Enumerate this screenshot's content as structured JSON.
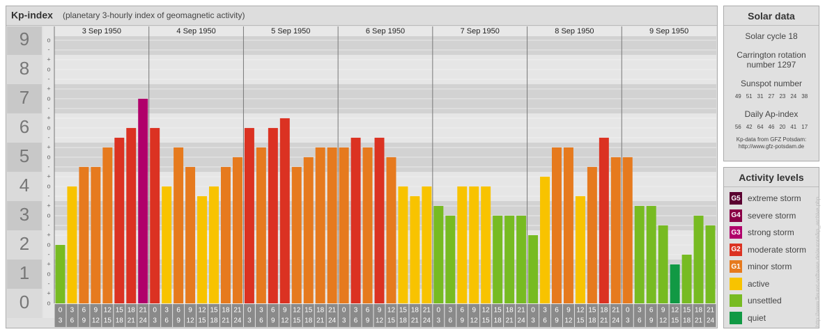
{
  "chart_data": {
    "type": "bar",
    "title": "Kp-index",
    "subtitle": "(planetary 3-hourly index of geomagnetic activity)",
    "days": [
      "3 Sep 1950",
      "4 Sep 1950",
      "5 Sep 1950",
      "6 Sep 1950",
      "7 Sep 1950",
      "8 Sep 1950",
      "9 Sep 1950"
    ],
    "hours": [
      [
        "0",
        "3"
      ],
      [
        "3",
        "6"
      ],
      [
        "6",
        "9"
      ],
      [
        "9",
        "12"
      ],
      [
        "12",
        "15"
      ],
      [
        "15",
        "18"
      ],
      [
        "18",
        "21"
      ],
      [
        "21",
        "24"
      ]
    ],
    "values": [
      2,
      4,
      4.667,
      4.667,
      5.333,
      5.667,
      6,
      7,
      6,
      4,
      5.333,
      4.667,
      3.667,
      4,
      4.667,
      5,
      6,
      5.333,
      6,
      6.333,
      4.667,
      5,
      5.333,
      5.333,
      5.333,
      5.667,
      5.333,
      5.667,
      5,
      4,
      3.667,
      4,
      3.333,
      3,
      4,
      4,
      4,
      3,
      3,
      3,
      2.333,
      4.333,
      5.333,
      5.333,
      3.667,
      4.667,
      5.667,
      5,
      5,
      3.333,
      3.333,
      2.667,
      1.333,
      1.667,
      3,
      2.667
    ],
    "colors": [
      "#77bb22",
      "#f8c300",
      "#e67a1e",
      "#e67a1e",
      "#e67a1e",
      "#db3222",
      "#db3222",
      "#b0006a",
      "#db3222",
      "#f8c300",
      "#e67a1e",
      "#e67a1e",
      "#f8c300",
      "#f8c300",
      "#e67a1e",
      "#e67a1e",
      "#db3222",
      "#e67a1e",
      "#db3222",
      "#db3222",
      "#e67a1e",
      "#e67a1e",
      "#e67a1e",
      "#e67a1e",
      "#e67a1e",
      "#db3222",
      "#e67a1e",
      "#db3222",
      "#e67a1e",
      "#f8c300",
      "#f8c300",
      "#f8c300",
      "#77bb22",
      "#77bb22",
      "#f8c300",
      "#f8c300",
      "#f8c300",
      "#77bb22",
      "#77bb22",
      "#77bb22",
      "#77bb22",
      "#f8c300",
      "#e67a1e",
      "#e67a1e",
      "#f8c300",
      "#e67a1e",
      "#db3222",
      "#e67a1e",
      "#e67a1e",
      "#77bb22",
      "#77bb22",
      "#77bb22",
      "#119944",
      "#77bb22",
      "#77bb22",
      "#77bb22"
    ],
    "ylim": [
      0,
      9.14
    ],
    "yticks": [
      0,
      1,
      2,
      3,
      4,
      5,
      6,
      7,
      8,
      9
    ],
    "yticks_minor": [
      {
        "value": 0,
        "label": "o"
      },
      {
        "value": 0.333,
        "label": "+"
      },
      {
        "value": 0.667,
        "label": "-"
      },
      {
        "value": 1,
        "label": "o"
      },
      {
        "value": 1.333,
        "label": "+"
      },
      {
        "value": 1.667,
        "label": "-"
      },
      {
        "value": 2,
        "label": "o"
      },
      {
        "value": 2.333,
        "label": "+"
      },
      {
        "value": 2.667,
        "label": "-"
      },
      {
        "value": 3,
        "label": "o"
      },
      {
        "value": 3.333,
        "label": "+"
      },
      {
        "value": 3.667,
        "label": "-"
      },
      {
        "value": 4,
        "label": "o"
      },
      {
        "value": 4.333,
        "label": "+"
      },
      {
        "value": 4.667,
        "label": "-"
      },
      {
        "value": 5,
        "label": "o"
      },
      {
        "value": 5.333,
        "label": "+"
      },
      {
        "value": 5.667,
        "label": "-"
      },
      {
        "value": 6,
        "label": "o"
      },
      {
        "value": 6.333,
        "label": "+"
      },
      {
        "value": 6.667,
        "label": "-"
      },
      {
        "value": 7,
        "label": "o"
      },
      {
        "value": 7.333,
        "label": "+"
      },
      {
        "value": 7.667,
        "label": "-"
      },
      {
        "value": 8,
        "label": "o"
      },
      {
        "value": 8.333,
        "label": "+"
      },
      {
        "value": 8.667,
        "label": "-"
      },
      {
        "value": 9,
        "label": "o"
      }
    ],
    "grid": true
  },
  "solar_data": {
    "title": "Solar data",
    "solar_cycle": "Solar cycle 18",
    "carrington": "Carrington rotation number 1297",
    "sunspot_title": "Sunspot number",
    "sunspot_numbers": [
      49,
      51,
      31,
      27,
      23,
      24,
      38
    ],
    "ap_title": "Daily Ap-index",
    "ap_values": [
      56,
      42,
      64,
      46,
      20,
      41,
      17
    ],
    "source": "Kp-data from GFZ Potsdam:",
    "source_url": "http://www.gfz-potsdam.de"
  },
  "activity_levels": {
    "title": "Activity levels",
    "items": [
      {
        "badge": "G5",
        "label": "extreme storm",
        "color": "#5a0030"
      },
      {
        "badge": "G4",
        "label": "severe storm",
        "color": "#8a0046"
      },
      {
        "badge": "G3",
        "label": "strong storm",
        "color": "#b0006a"
      },
      {
        "badge": "G2",
        "label": "moderate storm",
        "color": "#db3222"
      },
      {
        "badge": "G1",
        "label": "minor storm",
        "color": "#e67a1e"
      },
      {
        "label": "active",
        "color": "#f8c300"
      },
      {
        "label": "unsettled",
        "color": "#77bb22"
      },
      {
        "label": "quiet",
        "color": "#119944"
      }
    ]
  },
  "credit": "http://www.fleuret-software.de/aurora/kp_archive.php"
}
